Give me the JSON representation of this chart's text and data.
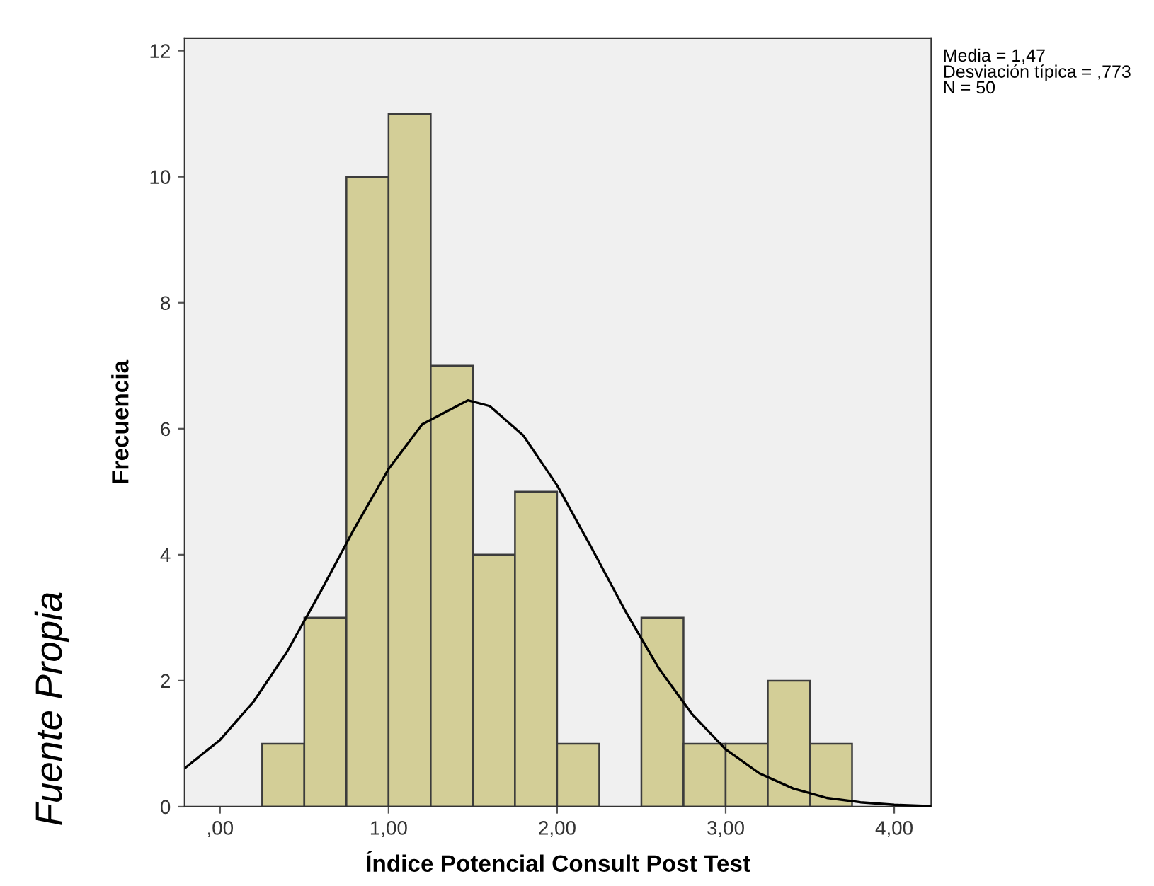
{
  "chart_data": {
    "type": "histogram",
    "xlabel": "Índice Potencial Consult Post Test",
    "ylabel": "Frecuencia",
    "bins": [
      0.25,
      0.5,
      0.75,
      1.0,
      1.25,
      1.5,
      1.75,
      2.0,
      2.25,
      2.5,
      2.75,
      3.0,
      3.25,
      3.5,
      3.75
    ],
    "values": [
      1,
      3,
      10,
      11,
      7,
      4,
      5,
      1,
      0,
      3,
      1,
      1,
      2,
      1
    ],
    "color": "#d3ce97",
    "series": [
      {
        "type": "line",
        "color": "#000000",
        "x": [
          -0.21,
          0.0,
          0.2,
          0.4,
          0.6,
          0.8,
          1.0,
          1.2,
          1.47,
          1.6,
          1.8,
          2.0,
          2.2,
          2.4,
          2.6,
          2.8,
          3.0,
          3.2,
          3.4,
          3.6,
          3.8,
          4.0,
          4.22
        ],
        "values": [
          0.61,
          1.06,
          1.67,
          2.47,
          3.43,
          4.43,
          5.36,
          6.07,
          6.45,
          6.36,
          5.89,
          5.1,
          4.13,
          3.13,
          2.21,
          1.47,
          0.91,
          0.53,
          0.29,
          0.14,
          0.07,
          0.03,
          0.01
        ]
      }
    ],
    "xlim": [
      -0.21,
      4.22
    ],
    "xticks": [
      {
        "value": 0,
        "label": ",00"
      },
      {
        "value": 1,
        "label": "1,00"
      },
      {
        "value": 2,
        "label": "2,00"
      },
      {
        "value": 3,
        "label": "3,00"
      },
      {
        "value": 4,
        "label": "4,00"
      }
    ],
    "ylim": [
      0,
      12.2
    ],
    "yticks": [
      0,
      2,
      4,
      6,
      8,
      10,
      12
    ],
    "grid": false,
    "legend": false,
    "annotations": [
      "Media = 1,47\nDesviación típica = ,773\nN = 50",
      "Fuente Propia"
    ]
  }
}
